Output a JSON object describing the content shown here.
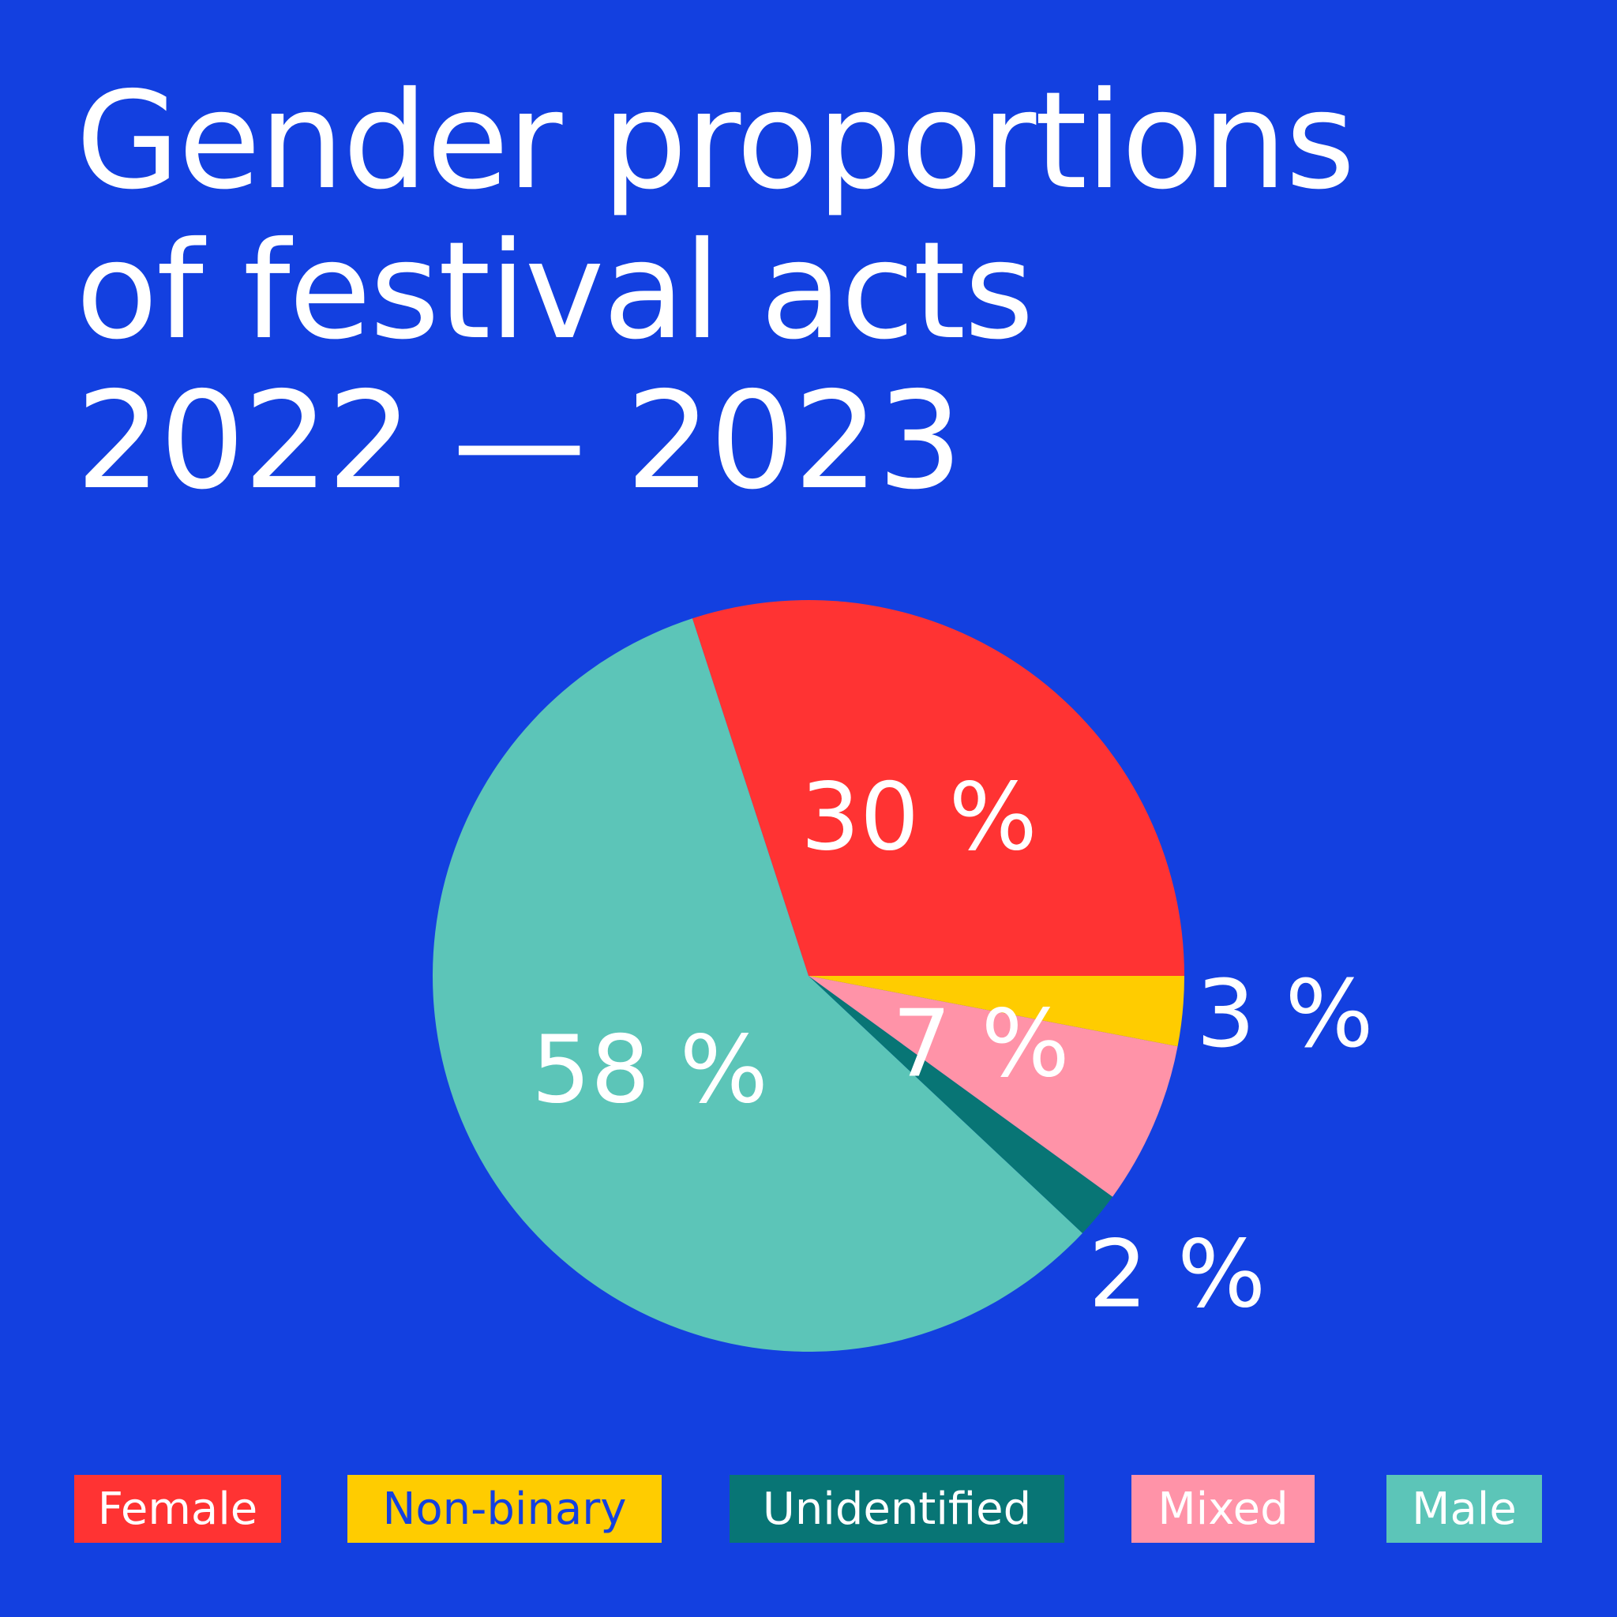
{
  "title": {
    "line1": "Gender proportions",
    "line2": "of festival acts",
    "line3": "2022 — 2023"
  },
  "colors": {
    "background": "#1340E0",
    "text": "#FFFFFF"
  },
  "chart_data": {
    "type": "pie",
    "title": "Gender proportions of festival acts 2022 — 2023",
    "start_angle_deg": 0,
    "direction": "clockwise-from-3-oclock-going-up",
    "slices": [
      {
        "name": "Female",
        "value": 30,
        "label": "30 %",
        "color": "#FF3333",
        "label_text_color": "#FFFFFF",
        "label_placement": "inside"
      },
      {
        "name": "Male",
        "value": 58,
        "label": "58 %",
        "color": "#5CC5B8",
        "label_text_color": "#FFFFFF",
        "label_placement": "inside"
      },
      {
        "name": "Unidentified",
        "value": 2,
        "label": "2 %",
        "color": "#087575",
        "label_text_color": "#FFFFFF",
        "label_placement": "outside"
      },
      {
        "name": "Mixed",
        "value": 7,
        "label": "7 %",
        "color": "#FF93A8",
        "label_text_color": "#FFFFFF",
        "label_placement": "inside"
      },
      {
        "name": "Non-binary",
        "value": 3,
        "label": "3 %",
        "color": "#FFCC00",
        "label_text_color": "#FFFFFF",
        "label_placement": "outside"
      }
    ],
    "legend": {
      "placement": "bottom",
      "items": [
        {
          "label": "Female",
          "color": "#FF3333",
          "text_color": "#FFFFFF"
        },
        {
          "label": "Non-binary",
          "color": "#FFCC00",
          "text_color": "#1340E0"
        },
        {
          "label": "Unidentified",
          "color": "#087575",
          "text_color": "#FFFFFF"
        },
        {
          "label": "Mixed",
          "color": "#FF93A8",
          "text_color": "#FFFFFF"
        },
        {
          "label": "Male",
          "color": "#5CC5B8",
          "text_color": "#FFFFFF"
        }
      ]
    }
  }
}
